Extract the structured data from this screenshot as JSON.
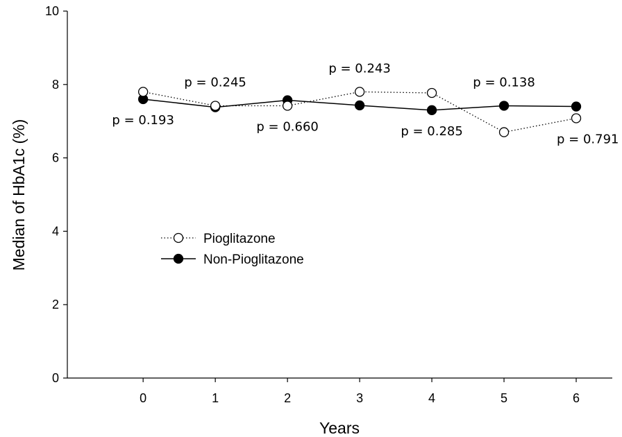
{
  "chart_data": {
    "type": "line",
    "xlabel": "Years",
    "ylabel": "Median of HbA1c (%)",
    "x": [
      0,
      1,
      2,
      3,
      4,
      5,
      6
    ],
    "xlim": [
      -1.05,
      6.5
    ],
    "ylim": [
      0,
      10
    ],
    "x_ticks": [
      0,
      1,
      2,
      3,
      4,
      5,
      6
    ],
    "y_ticks": [
      0,
      2,
      4,
      6,
      8,
      10
    ],
    "grid": false,
    "legend_position": "middle-left",
    "series": [
      {
        "name": "Pioglitazone",
        "values": [
          7.8,
          7.42,
          7.42,
          7.8,
          7.77,
          6.7,
          7.08
        ],
        "line_style": "dotted",
        "marker": "open-circle",
        "color": "#000000"
      },
      {
        "name": "Non-Pioglitazone",
        "values": [
          7.6,
          7.38,
          7.57,
          7.43,
          7.3,
          7.42,
          7.4
        ],
        "line_style": "solid",
        "marker": "filled-circle",
        "color": "#000000"
      }
    ],
    "annotations": [
      {
        "x": 0,
        "text": "p = 0.193",
        "placement": "below"
      },
      {
        "x": 1,
        "text": "p = 0.245",
        "placement": "above"
      },
      {
        "x": 2,
        "text": "p = 0.660",
        "placement": "below"
      },
      {
        "x": 3,
        "text": "p = 0.243",
        "placement": "above"
      },
      {
        "x": 4,
        "text": "p = 0.285",
        "placement": "below"
      },
      {
        "x": 5,
        "text": "p = 0.138",
        "placement": "above"
      },
      {
        "x": 6,
        "text": "p = 0.791",
        "placement": "below"
      }
    ]
  }
}
